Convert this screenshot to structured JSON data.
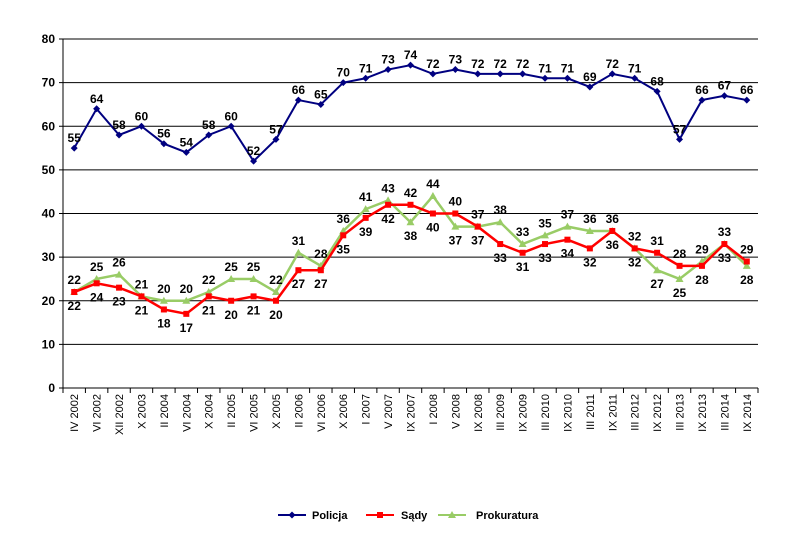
{
  "chart_data": {
    "type": "line",
    "categories": [
      "IV 2002",
      "VI 2002",
      "XII 2002",
      "X 2003",
      "II 2004",
      "VI 2004",
      "X 2004",
      "II 2005",
      "VI 2005",
      "X 2005",
      "II 2006",
      "VI 2006",
      "X 2006",
      "I 2007",
      "V 2007",
      "IX 2007",
      "I 2008",
      "V 2008",
      "IX 2008",
      "III 2009",
      "IX 2009",
      "III 2010",
      "IX 2010",
      "III 2011",
      "IX 2011",
      "III 2012",
      "IX 2012",
      "III 2013",
      "IX 2013",
      "III 2014",
      "IX 2014"
    ],
    "series": [
      {
        "name": "Policja",
        "color": "#000080",
        "marker": "diamond",
        "values": [
          55,
          64,
          58,
          60,
          56,
          54,
          58,
          60,
          52,
          57,
          66,
          65,
          70,
          71,
          73,
          74,
          72,
          73,
          72,
          72,
          72,
          71,
          71,
          69,
          72,
          71,
          68,
          57,
          66,
          67,
          66
        ]
      },
      {
        "name": "Sądy",
        "color": "#ff0000",
        "marker": "square",
        "values": [
          22,
          24,
          23,
          21,
          18,
          17,
          21,
          20,
          21,
          20,
          27,
          27,
          35,
          39,
          42,
          42,
          40,
          40,
          37,
          33,
          31,
          33,
          34,
          32,
          36,
          32,
          31,
          28,
          28,
          33,
          29
        ]
      },
      {
        "name": "Prokuratura",
        "color": "#99cc66",
        "marker": "triangle",
        "values": [
          22,
          25,
          26,
          21,
          20,
          20,
          22,
          25,
          25,
          22,
          31,
          28,
          36,
          41,
          43,
          38,
          44,
          37,
          37,
          38,
          33,
          35,
          37,
          36,
          36,
          32,
          27,
          25,
          29,
          33,
          28
        ]
      }
    ],
    "ylim": [
      0,
      80
    ],
    "yticks": [
      "0",
      "10",
      "20",
      "30",
      "40",
      "50",
      "60",
      "70",
      "80"
    ],
    "grid": true,
    "legend_position": "bottom",
    "title": "",
    "xlabel": "",
    "ylabel": ""
  }
}
